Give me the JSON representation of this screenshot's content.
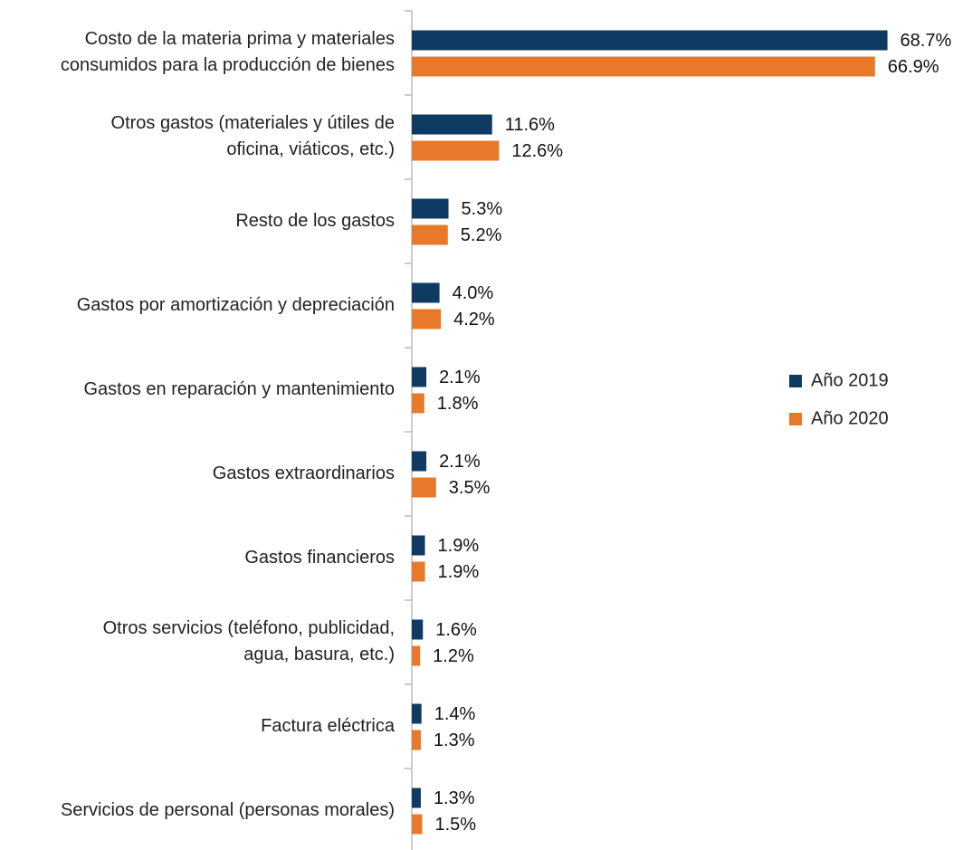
{
  "chart_data": {
    "type": "barh",
    "categories": [
      "Costo de la materia prima y materiales\nconsumidos para la producción de bienes",
      "Otros gastos (materiales y útiles de\noficina, viáticos, etc.)",
      "Resto de los gastos",
      "Gastos por amortización y depreciación",
      "Gastos en reparación y mantenimiento",
      "Gastos extraordinarios",
      "Gastos financieros",
      "Otros servicios (teléfono, publicidad,\nagua, basura, etc.)",
      "Factura eléctrica",
      "Servicios de personal (personas morales)"
    ],
    "series": [
      {
        "name": "Año 2019",
        "color": "#0f3b62",
        "values": [
          68.7,
          11.6,
          5.3,
          4.0,
          2.1,
          2.1,
          1.9,
          1.6,
          1.4,
          1.3
        ],
        "value_labels": [
          "68.7%",
          "11.6%",
          "5.3%",
          "4.0%",
          "2.1%",
          "2.1%",
          "1.9%",
          "1.6%",
          "1.4%",
          "1.3%"
        ]
      },
      {
        "name": "Año 2020",
        "color": "#e8782a",
        "values": [
          66.9,
          12.6,
          5.2,
          4.2,
          1.8,
          3.5,
          1.9,
          1.2,
          1.3,
          1.5
        ],
        "value_labels": [
          "66.9%",
          "12.6%",
          "5.2%",
          "4.2%",
          "1.8%",
          "3.5%",
          "1.9%",
          "1.2%",
          "1.3%",
          "1.5%"
        ]
      }
    ],
    "xlim": [
      0,
      80
    ],
    "legend": "right"
  }
}
